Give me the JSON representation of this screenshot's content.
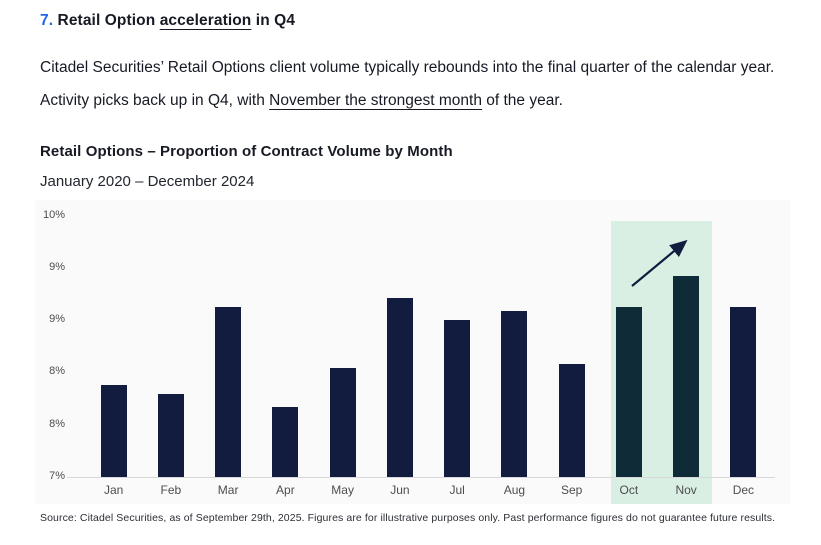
{
  "header": {
    "number": "7.",
    "title_pre": " Retail Option ",
    "title_underlined": "acceleration",
    "title_post": " in Q4"
  },
  "paragraph": {
    "part1": "Citadel Securities’ Retail Options client volume typically rebounds into the final quarter of the calendar year. Activity picks back up in Q4, with ",
    "underlined": "November the strongest month",
    "part2": " of the year."
  },
  "chart_data": {
    "type": "bar",
    "title": "Retail Options – Proportion of Contract Volume by Month",
    "subtitle": "January 2020 – December 2024",
    "categories": [
      "Jan",
      "Feb",
      "Mar",
      "Apr",
      "May",
      "Jun",
      "Jul",
      "Aug",
      "Sep",
      "Oct",
      "Nov",
      "Dec"
    ],
    "values": [
      8.05,
      7.95,
      8.95,
      7.8,
      8.25,
      9.05,
      8.8,
      8.9,
      8.3,
      8.95,
      9.3,
      8.95
    ],
    "unit": "%",
    "ylim": [
      7,
      10
    ],
    "ytick_labels_bottom_to_top": [
      "7%",
      "8%",
      "8%",
      "9%",
      "9%",
      "10%"
    ],
    "grid": "off",
    "legend": "none",
    "highlighted_categories": [
      "Oct",
      "Nov"
    ],
    "annotation": "upward trend arrow over Oct–Nov highlight band",
    "colors": {
      "bar": "#111c3e",
      "highlighted_bar": "#0f2b38",
      "highlight_band": "#d9efe3",
      "plot_background": "#fafafa",
      "accent_number": "#2563e8"
    }
  },
  "footer": {
    "source": "Source: Citadel Securities, as of September 29th, 2025. Figures are for illustrative purposes only. Past performance figures do not guarantee future results."
  }
}
